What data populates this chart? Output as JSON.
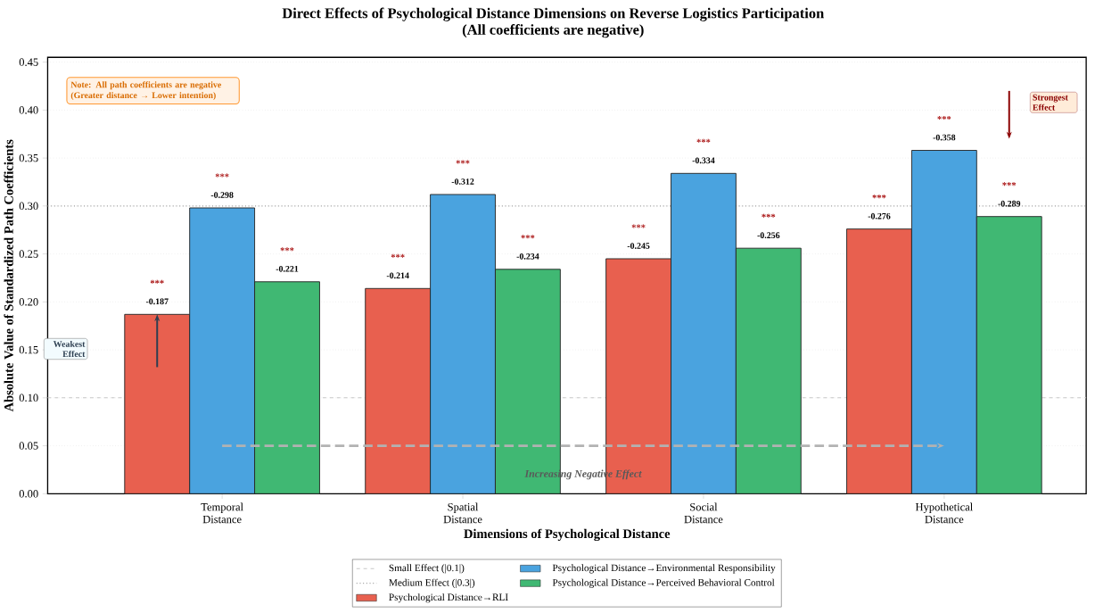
{
  "chart_data": {
    "type": "bar",
    "title": "Direct Effects of Psychological Distance Dimensions on Reverse Logistics Participation",
    "subtitle": "(All coefficients are negative)",
    "xlabel": "Dimensions of Psychological Distance",
    "ylabel": "Absolute Value of Standardized Path Coefficients",
    "categories": [
      "Temporal Distance",
      "Spatial Distance",
      "Social Distance",
      "Hypothetical Distance"
    ],
    "series": [
      {
        "name": "Psychological Distance→RLI",
        "color": "#e8604f",
        "values": [
          0.187,
          0.214,
          0.245,
          0.276
        ]
      },
      {
        "name": "Psychological Distance→Environmental Responsibility",
        "color": "#4aa3df",
        "values": [
          0.298,
          0.312,
          0.334,
          0.358
        ]
      },
      {
        "name": "Psychological Distance→Perceived Behavioral Control",
        "color": "#40b873",
        "values": [
          0.221,
          0.234,
          0.256,
          0.289
        ]
      }
    ],
    "ylim": [
      0,
      0.455
    ],
    "yticks": [
      {
        "value": 0,
        "label": "0.00"
      },
      {
        "value": 0.05,
        "label": "0.05"
      },
      {
        "value": 0.1,
        "label": "0.10"
      },
      {
        "value": 0.15,
        "label": "0.15"
      },
      {
        "value": 0.2,
        "label": "0.20"
      },
      {
        "value": 0.25,
        "label": "0.25"
      },
      {
        "value": 0.3,
        "label": "0.30"
      },
      {
        "value": 0.35,
        "label": "0.35"
      },
      {
        "value": 0.4,
        "label": "0.40"
      },
      {
        "value": 0.45,
        "label": "0.45"
      }
    ],
    "grid": "y",
    "legend": "bottom",
    "ref_lines": [
      {
        "axis": "y",
        "value": 0.1,
        "label": "Small Effect (|0.1|)",
        "color": "#c8c8c8",
        "line_style": "dashed"
      },
      {
        "axis": "y",
        "value": 0.3,
        "label": "Medium Effect (|0.3|)",
        "color": "#a0a0a0",
        "line_style": "dotted"
      }
    ],
    "annotations": [
      "Note: All path coefficients are negative (Greater distance → Lower intention)",
      "Weakest Effect",
      "Strongest Effect",
      "Increasing Negative Effect",
      "***",
      "***",
      "***",
      "***",
      "***",
      "***",
      "***",
      "***",
      "***",
      "***",
      "***",
      "***",
      "-0.187",
      "-0.298",
      "-0.221",
      "-0.214",
      "-0.312",
      "-0.234",
      "-0.245",
      "-0.334",
      "-0.256",
      "-0.276",
      "-0.358",
      "-0.289"
    ]
  }
}
